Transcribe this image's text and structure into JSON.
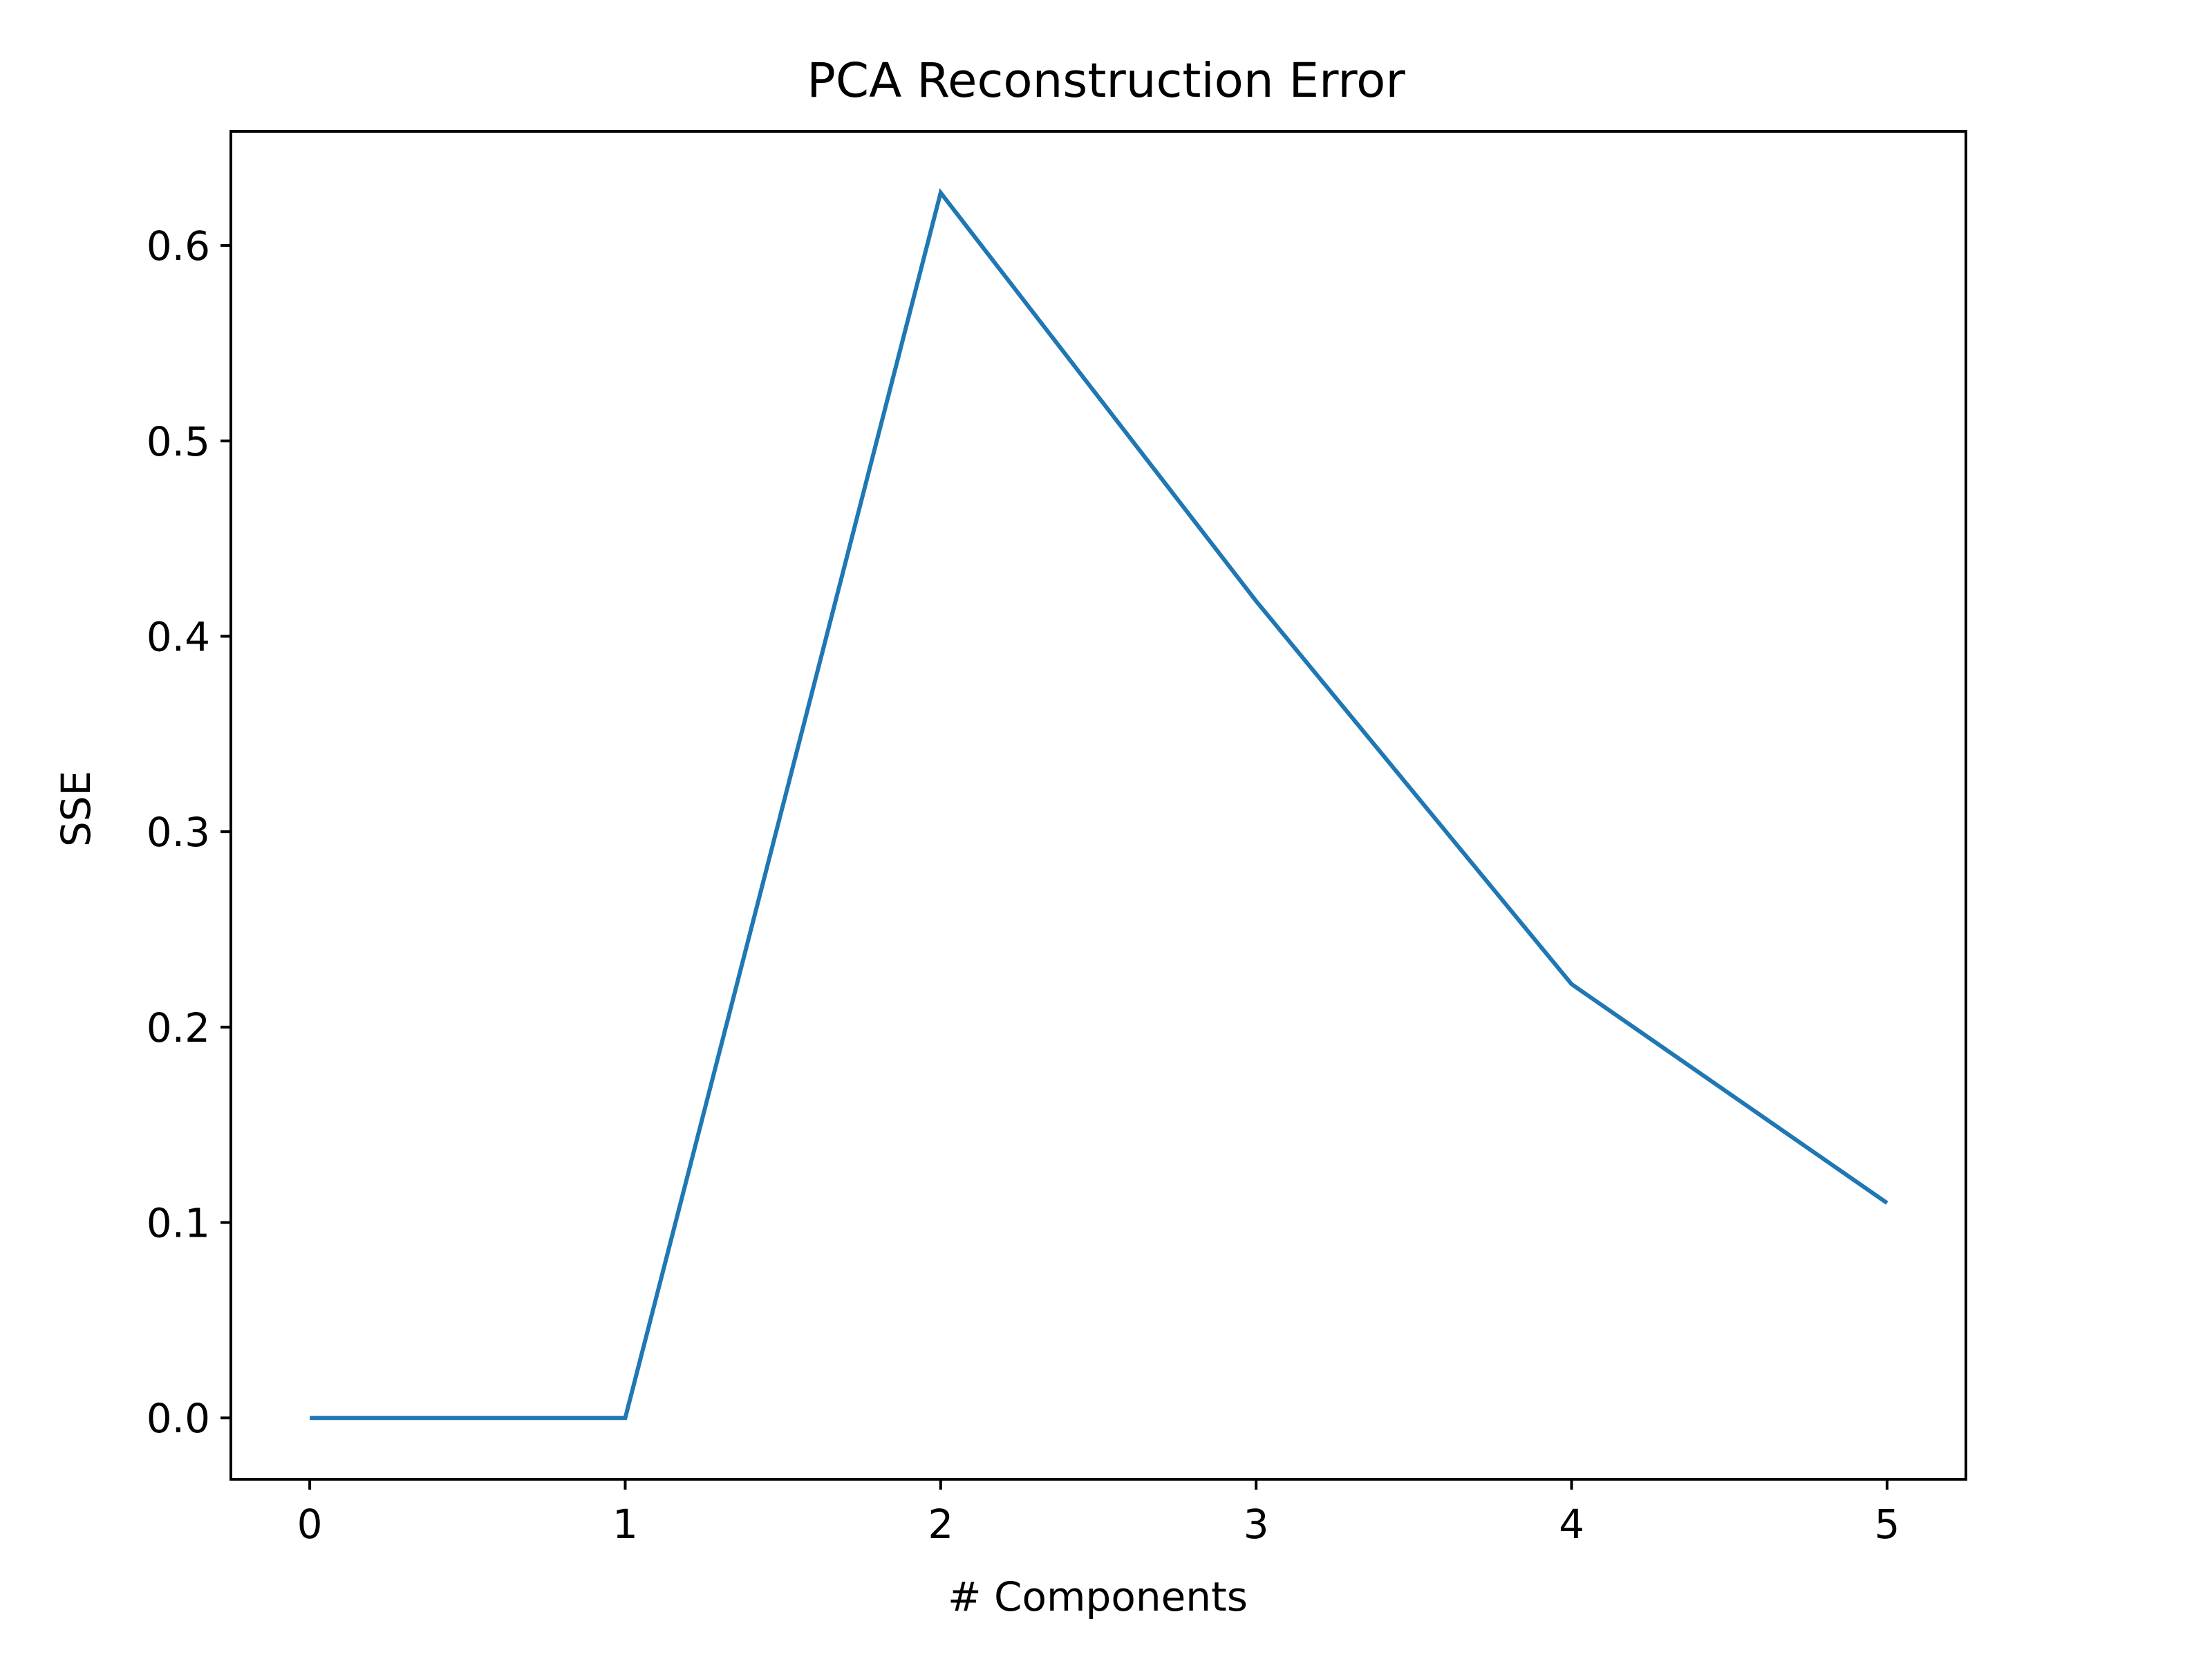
{
  "chart_data": {
    "type": "line",
    "title": "PCA Reconstruction Error",
    "xlabel": "# Components",
    "ylabel": "SSE",
    "x": [
      0,
      1,
      2,
      3,
      4,
      5
    ],
    "series": [
      {
        "values": [
          0.0,
          0.0,
          0.627,
          0.418,
          0.222,
          0.11
        ]
      }
    ],
    "xticks": [
      "0",
      "1",
      "2",
      "3",
      "4",
      "5"
    ],
    "yticks": [
      "0.0",
      "0.1",
      "0.2",
      "0.3",
      "0.4",
      "0.5",
      "0.6"
    ],
    "xlim": [
      -0.25,
      5.25
    ],
    "ylim": [
      -0.0314,
      0.6584
    ],
    "grid": false,
    "legend": "none",
    "line_color": "#1f77b4",
    "frame_color": "#000000"
  }
}
